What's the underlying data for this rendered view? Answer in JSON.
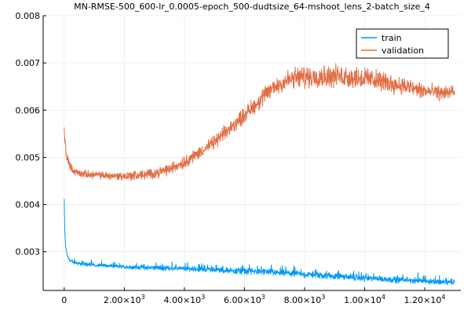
{
  "chart_data": {
    "type": "line",
    "title": "MN-RMSE-500_600-lr_0.0005-epoch_500-dudtsize_64-mshoot_lens_2-batch_size_4",
    "xlabel": "",
    "ylabel": "",
    "xlim": [
      -700,
      13200
    ],
    "ylim": [
      0.00218,
      0.008
    ],
    "grid": true,
    "legend_position": "top-right",
    "x_ticks": [
      0,
      2000,
      4000,
      6000,
      8000,
      10000,
      12000
    ],
    "x_tick_labels": [
      {
        "mant": "0",
        "exp": ""
      },
      {
        "mant": "2.00×10",
        "exp": "3"
      },
      {
        "mant": "4.00×10",
        "exp": "3"
      },
      {
        "mant": "6.00×10",
        "exp": "3"
      },
      {
        "mant": "8.00×10",
        "exp": "3"
      },
      {
        "mant": "1.00×10",
        "exp": "4"
      },
      {
        "mant": "1.20×10",
        "exp": "4"
      }
    ],
    "y_ticks": [
      0.003,
      0.004,
      0.005,
      0.006,
      0.007,
      0.008
    ],
    "y_tick_labels": [
      "0.003",
      "0.004",
      "0.005",
      "0.006",
      "0.007",
      "0.008"
    ],
    "x_max": 13000,
    "series": [
      {
        "name": "train",
        "color": "#009af9",
        "x": [
          0,
          20,
          50,
          100,
          150,
          200,
          300,
          500,
          750,
          1000,
          1500,
          2000,
          2500,
          3000,
          3500,
          4000,
          5000,
          6000,
          7000,
          8000,
          9000,
          10000,
          11000,
          12000,
          12500,
          13000
        ],
        "y": [
          0.00412,
          0.0034,
          0.0031,
          0.00292,
          0.00285,
          0.00281,
          0.00278,
          0.00275,
          0.00273,
          0.00272,
          0.0027,
          0.00268,
          0.00267,
          0.00266,
          0.00265,
          0.00264,
          0.00262,
          0.00259,
          0.00256,
          0.00252,
          0.00248,
          0.00244,
          0.00241,
          0.00238,
          0.00237,
          0.00235
        ],
        "noise": [
          0,
          0,
          0,
          2e-05,
          3e-05,
          3e-05,
          3e-05,
          3e-05,
          3e-05,
          3e-05,
          3e-05,
          3e-05,
          4e-05,
          4e-05,
          4e-05,
          4e-05,
          4e-05,
          5e-05,
          5e-05,
          5e-05,
          5e-05,
          5e-05,
          5e-05,
          5e-05,
          5e-05,
          5e-05
        ]
      },
      {
        "name": "validation",
        "color": "#e26f46",
        "x": [
          0,
          30,
          80,
          150,
          250,
          400,
          600,
          1000,
          1500,
          2000,
          2500,
          3000,
          3500,
          4000,
          4500,
          5000,
          5500,
          6000,
          6500,
          7000,
          7500,
          8000,
          8500,
          9000,
          9500,
          10000,
          10500,
          11000,
          11500,
          12000,
          12500,
          13000
        ],
        "y": [
          0.0056,
          0.0053,
          0.00505,
          0.0049,
          0.00475,
          0.00468,
          0.00465,
          0.00463,
          0.00461,
          0.0046,
          0.00462,
          0.00466,
          0.00475,
          0.0049,
          0.0051,
          0.00532,
          0.0056,
          0.0059,
          0.0062,
          0.0065,
          0.00665,
          0.0067,
          0.00672,
          0.00672,
          0.0067,
          0.00668,
          0.00662,
          0.00655,
          0.00648,
          0.0064,
          0.00637,
          0.00637
        ],
        "noise": [
          0.0001,
          0.0001,
          0.0001,
          7e-05,
          6e-05,
          6e-05,
          6e-05,
          6e-05,
          6e-05,
          7e-05,
          8e-05,
          8e-05,
          9e-05,
          0.0001,
          0.0001,
          0.00011,
          0.00012,
          0.00013,
          0.00014,
          0.00015,
          0.00017,
          0.00018,
          0.00018,
          0.00018,
          0.00018,
          0.00017,
          0.00016,
          0.00015,
          0.00014,
          0.00013,
          0.00012,
          0.00011
        ]
      }
    ]
  }
}
